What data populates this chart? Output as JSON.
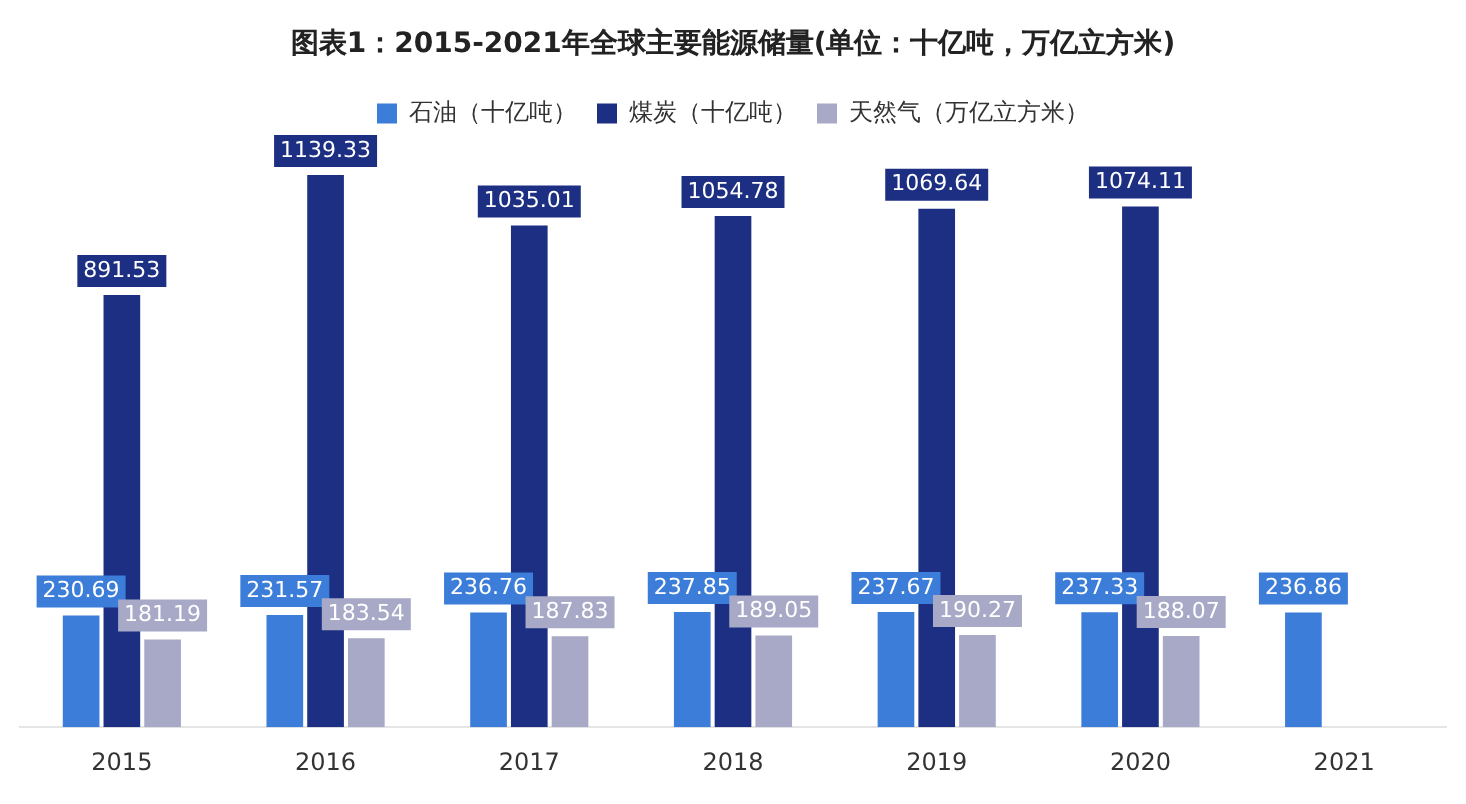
{
  "chart_data": {
    "type": "bar",
    "title": "图表1：2015-2021年全球主要能源储量(单位：十亿吨，万亿立方米)",
    "categories": [
      "2015",
      "2016",
      "2017",
      "2018",
      "2019",
      "2020",
      "2021"
    ],
    "series": [
      {
        "name": "石油（十亿吨）",
        "color": "#3b7dd8",
        "values": [
          230.69,
          231.57,
          236.76,
          237.85,
          237.67,
          237.33,
          236.86
        ]
      },
      {
        "name": "煤炭（十亿吨）",
        "color": "#1c2f82",
        "values": [
          891.53,
          1139.33,
          1035.01,
          1054.78,
          1069.64,
          1074.11,
          null
        ]
      },
      {
        "name": "天然气（万亿立方米）",
        "color": "#a7a9c6",
        "values": [
          181.19,
          183.54,
          187.83,
          189.05,
          190.27,
          188.07,
          null
        ]
      }
    ],
    "legend": "top",
    "data_labels": true
  }
}
